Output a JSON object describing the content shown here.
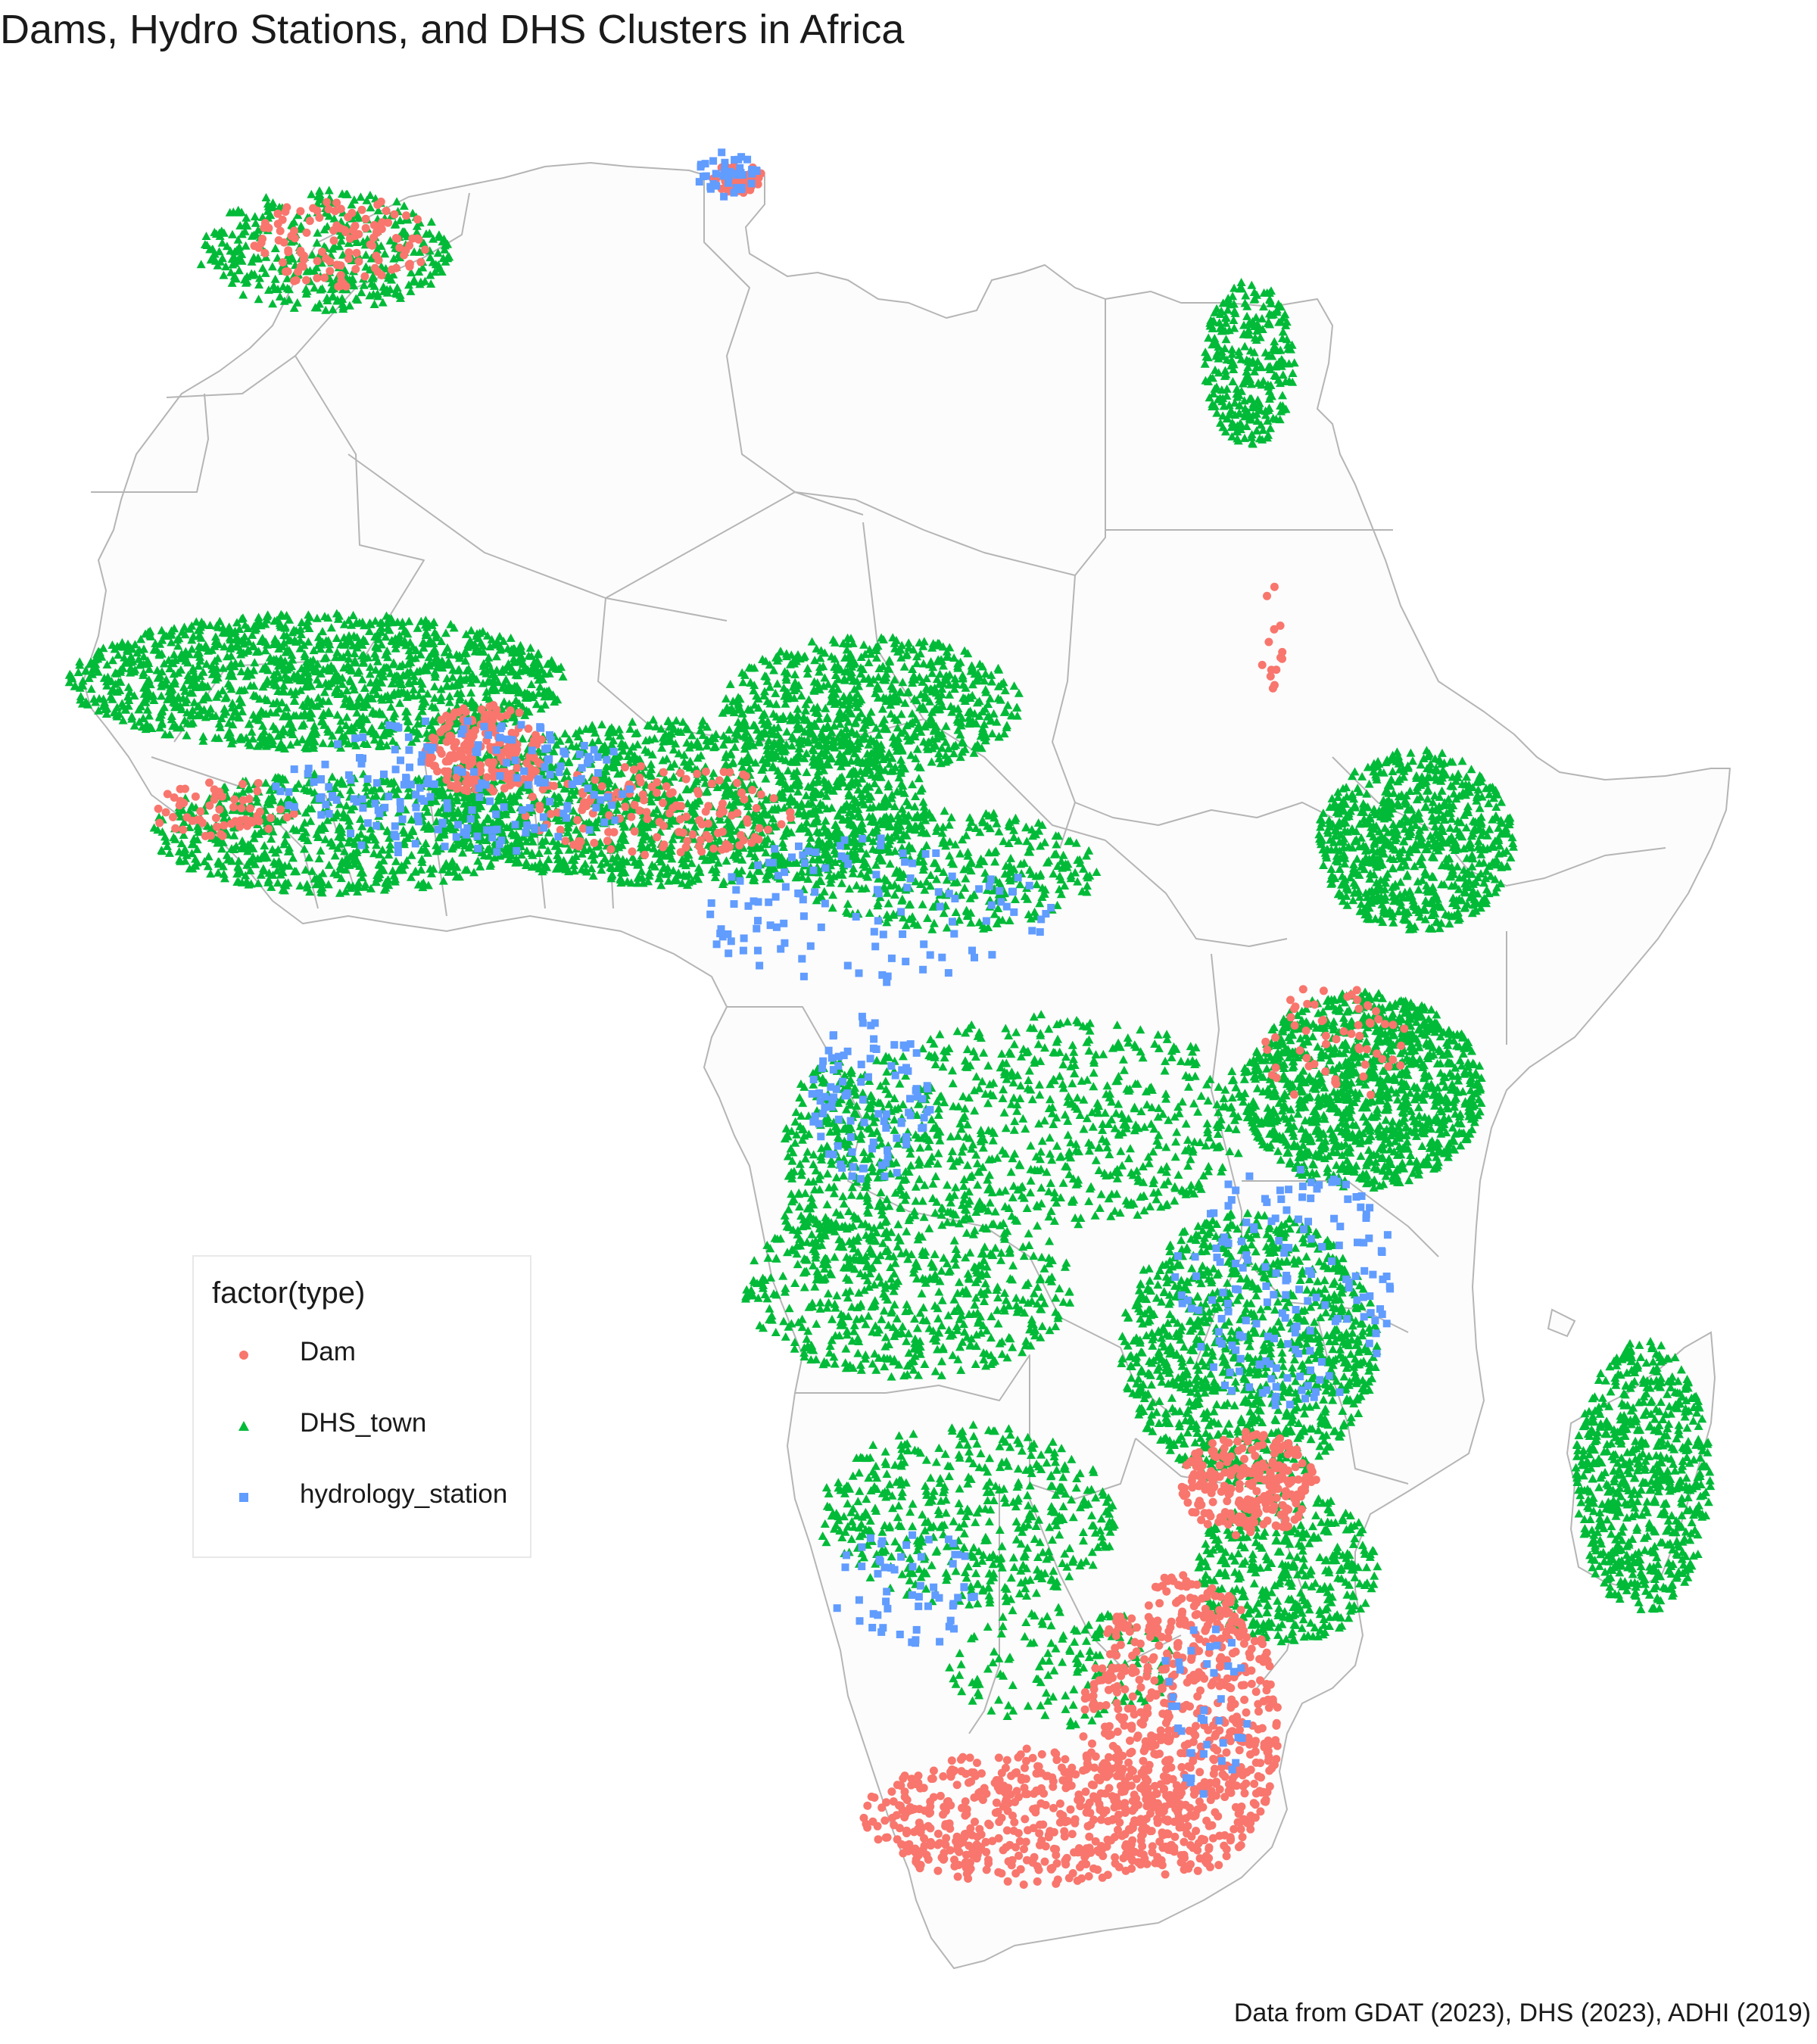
{
  "title": "Dams, Hydro Stations, and DHS Clusters in Africa",
  "caption": "Data from GDAT (2023), DHS (2023), ADHI (2019)",
  "legend": {
    "title": "factor(type)",
    "items": [
      {
        "label": "Dam",
        "color": "#F8766D",
        "shape": "circle"
      },
      {
        "label": "DHS_town",
        "color": "#00BA38",
        "shape": "triangle"
      },
      {
        "label": "hydrology_station",
        "color": "#619CFF",
        "shape": "square"
      }
    ]
  },
  "colors": {
    "land": "#fcfcfc",
    "border": "#b5b5b5",
    "background": "#ffffff"
  }
}
